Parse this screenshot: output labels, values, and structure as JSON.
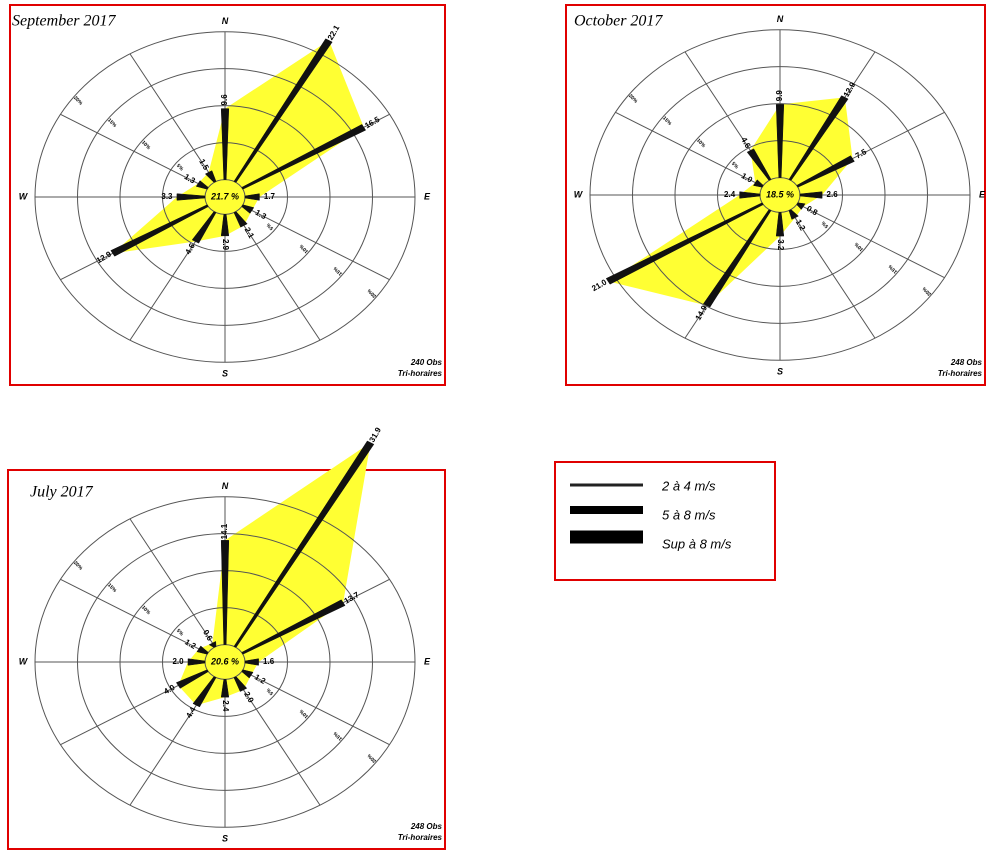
{
  "chart_data": [
    {
      "type": "windrose",
      "title": "September 2017",
      "values": [
        9.6,
        22.1,
        16.5,
        1.7,
        1.3,
        2.1,
        2.9,
        4.6,
        12.9,
        3.3,
        1.3,
        1.5
      ],
      "value_labels": [
        "9.6",
        "22.1",
        "16.5",
        "1.7",
        "1.3",
        "2.1",
        "2.9",
        "4.6",
        "12.9",
        "3.3",
        "1.3",
        "1.5"
      ],
      "calm": {
        "value": 21.7,
        "label": "21.7 %"
      },
      "rlim": [
        0,
        20
      ],
      "rticks": [
        {
          "value": 5,
          "label": "5%"
        },
        {
          "value": 10,
          "label": "10%"
        },
        {
          "value": 15,
          "label": "15%"
        },
        {
          "value": 20,
          "label": "20%"
        }
      ],
      "compass": [
        "N",
        "E",
        "S",
        "W"
      ],
      "obs": [
        "240 Obs",
        "Tri-horaires"
      ],
      "color": "#ffff33"
    },
    {
      "type": "windrose",
      "title": "October 2017",
      "values": [
        9.9,
        12.9,
        7.5,
        2.6,
        0.8,
        1.2,
        3.2,
        14.9,
        21.0,
        2.4,
        1.0,
        4.6
      ],
      "value_labels": [
        "9.9",
        "12.9",
        "7.5",
        "2.6",
        "0.8",
        "1.2",
        "3.2",
        "14.9",
        "21.0",
        "2.4",
        "1.0",
        "4.6"
      ],
      "calm": {
        "value": 18.5,
        "label": "18.5 %"
      },
      "rlim": [
        0,
        20
      ],
      "rticks": [
        {
          "value": 5,
          "label": "5%"
        },
        {
          "value": 10,
          "label": "10%"
        },
        {
          "value": 15,
          "label": "15%"
        },
        {
          "value": 20,
          "label": "20%"
        }
      ],
      "compass": [
        "N",
        "E",
        "S",
        "W"
      ],
      "obs": [
        "248 Obs",
        "Tri-horaires"
      ],
      "color": "#ffff33"
    },
    {
      "type": "windrose",
      "title": "July 2017",
      "values": [
        14.1,
        31.9,
        13.7,
        1.6,
        1.2,
        2.0,
        2.4,
        4.4,
        4.0,
        2.0,
        1.2,
        0.6
      ],
      "value_labels": [
        "14.1",
        "31.9",
        "13.7",
        "1.6",
        "1.2",
        "2.0",
        "2.4",
        "4.4",
        "4.0",
        "2.0",
        "1.2",
        "0.6"
      ],
      "calm": {
        "value": 20.6,
        "label": "20.6 %"
      },
      "rlim": [
        0,
        20
      ],
      "rticks": [
        {
          "value": 5,
          "label": "5%"
        },
        {
          "value": 10,
          "label": "10%"
        },
        {
          "value": 15,
          "label": "15%"
        },
        {
          "value": 20,
          "label": "20%"
        }
      ],
      "compass": [
        "N",
        "E",
        "S",
        "W"
      ],
      "obs": [
        "248 Obs",
        "Tri-horaires"
      ],
      "color": "#ffff33"
    }
  ],
  "legend": [
    "2 à 4 m/s",
    "5 à 8 m/s",
    "Sup à 8 m/s"
  ]
}
